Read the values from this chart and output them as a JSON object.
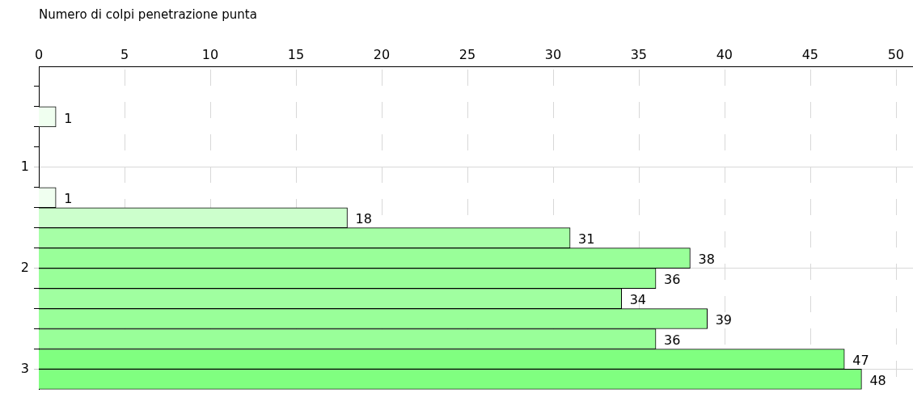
{
  "chart_data": {
    "type": "bar",
    "orientation": "horizontal",
    "xlabel": "Numero di colpi penetrazione punta",
    "x": [
      0.5,
      1.3,
      1.5,
      1.7,
      1.9,
      2.1,
      2.3,
      2.5,
      2.7,
      2.9,
      3.1
    ],
    "values": [
      1,
      1,
      18,
      31,
      38,
      36,
      34,
      39,
      36,
      47,
      48
    ],
    "colors": [
      "#f0fff0",
      "#f0fff0",
      "#ccffcc",
      "#a6ffa6",
      "#99ff99",
      "#99ff99",
      "#a0ffa0",
      "#99ff99",
      "#99ff99",
      "#80ff80",
      "#80ff80"
    ],
    "xlim": [
      0,
      51
    ],
    "xticks": [
      0,
      5,
      10,
      15,
      20,
      25,
      30,
      35,
      40,
      45,
      50
    ],
    "ylim": [
      3.2,
      0
    ],
    "yticks": [
      {
        "value": 0.2,
        "label": null
      },
      {
        "value": 0.4,
        "label": null
      },
      {
        "value": 0.6,
        "label": null
      },
      {
        "value": 0.8,
        "label": null
      },
      1,
      {
        "value": 1.2,
        "label": null
      },
      {
        "value": 1.4,
        "label": null
      },
      {
        "value": 1.6,
        "label": null
      },
      {
        "value": 1.8,
        "label": null
      },
      2,
      {
        "value": 2.2,
        "label": null
      },
      {
        "value": 2.4,
        "label": null
      },
      {
        "value": 2.6,
        "label": null
      },
      {
        "value": 2.8,
        "label": null
      },
      3
    ],
    "grid": true,
    "data_labels": true
  }
}
